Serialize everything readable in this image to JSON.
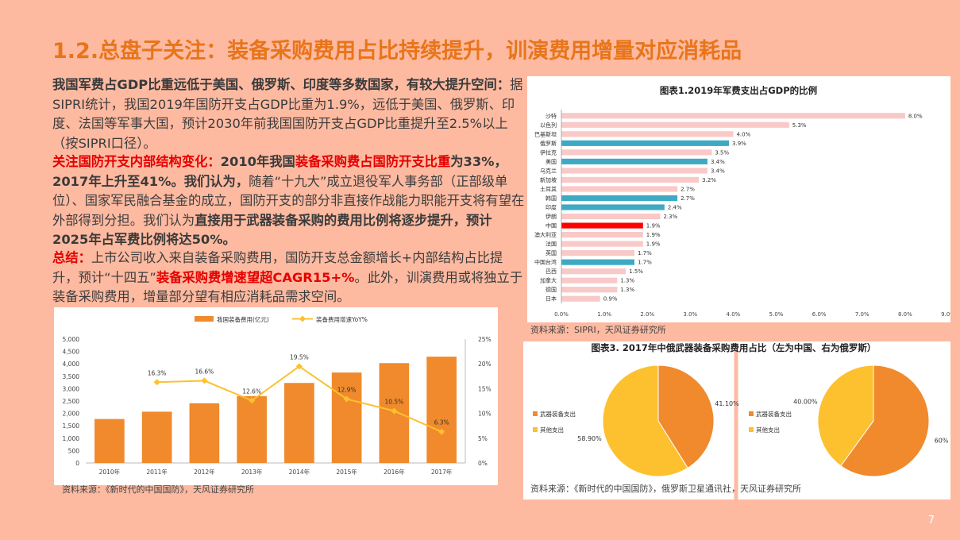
{
  "title": "1.2.总盘子关注：装备采购费用占比持续提升，训演费用增量对应消耗品",
  "page_number": "7",
  "paragraphs": {
    "p1_bold": "我国军费占GDP比重远低于美国、俄罗斯、印度等多数国家，有较大提升空间：",
    "p1_text": "据SIPRI统计，我国2019年国防开支占GDP比重为1.9%，远低于美国、俄罗斯、印度、法国等军事大国，预计2030年前我国国防开支占GDP比重提升至2.5%以上（按SIPRI口径）。",
    "p2_red1": "关注国防开支内部结构变化：",
    "p2_bold1": "2010年我国",
    "p2_red2": "装备采购费占国防开支比重",
    "p2_bold2": "为33%，2017年上升至41%。我们认为，",
    "p2_text1": "随着“十九大”成立退役军人事务部（正部级单位）、国家军民融合基金的成立，国防开支的部分非直接作战能力职能开支将有望在外部得到分担。我们认为",
    "p2_bold3": "直接用于武器装备采购的费用比例将逐步提升，预计2025年占军费比例将达50%。",
    "p3_red1": "总结：",
    "p3_text1": "上市公司收入来自装备采购费用，国防开支总金额增长+内部结构占比提升，预计“十四五”",
    "p3_red2": "装备采购费增速望超CAGR15+%",
    "p3_text2": "。此外，训演费用或将独立于装备采购费用，增量部分望有相应消耗品需求空间。"
  },
  "sources": {
    "left_chart": "资料来源：《新时代的中国国防》，天风证券研究所",
    "right_chart": "资料来源：SIPRI，天风证券研究所",
    "pies": "资料来源：《新时代的中国国防》，俄罗斯卫星通讯社，天风证券研究所"
  },
  "colors": {
    "background": "#FDBAA1",
    "title": "#E8751A",
    "bar_orange": "#F08A2C",
    "line_yellow": "#FDC02F",
    "hbar_pink": "#F9C9C8",
    "hbar_teal": "#3FA9C4",
    "hbar_red": "#FF0000",
    "pie_orange": "#F08A2C",
    "pie_yellow": "#FDC02F"
  },
  "chart_data": [
    {
      "type": "bar",
      "categories": [
        "2010年",
        "2011年",
        "2012年",
        "2013年",
        "2014年",
        "2015年",
        "2016年",
        "2017年"
      ],
      "series": [
        {
          "name": "我国装备费用(亿元)",
          "values": [
            1774,
            2070,
            2410,
            2700,
            3230,
            3650,
            4030,
            4290
          ],
          "axis": "left"
        },
        {
          "name": "装备费用增速YoY%",
          "type": "line",
          "values": [
            null,
            16.3,
            16.6,
            12.6,
            19.5,
            12.9,
            10.5,
            6.3
          ],
          "labels": [
            "",
            "16.3%",
            "16.6%",
            "12.6%",
            "19.5%",
            "12.9%",
            "10.5%",
            "6.3%"
          ],
          "axis": "right"
        }
      ],
      "yticks": [
        "5,000",
        "4,500",
        "4,000",
        "3,500",
        "3,000",
        "2,500",
        "2,000",
        "1,500",
        "1,000",
        "500",
        "0"
      ],
      "y2ticks": [
        "25%",
        "20%",
        "15%",
        "10%",
        "5%",
        "0%"
      ],
      "ylim": [
        0,
        5000
      ],
      "y2lim": [
        0,
        25
      ],
      "legend_position": "top-center"
    },
    {
      "type": "bar",
      "orientation": "horizontal",
      "title": "图表1.2019年军费支出占GDP的比例",
      "categories": [
        "沙特",
        "以色列",
        "巴基斯坦",
        "俄罗斯",
        "伊拉克",
        "美国",
        "乌克兰",
        "新加坡",
        "土耳其",
        "韩国",
        "印度",
        "伊朗",
        "中国",
        "澳大利亚",
        "法国",
        "英国",
        "中国台湾",
        "巴西",
        "加拿大",
        "德国",
        "日本"
      ],
      "values": [
        8.0,
        5.3,
        4.0,
        3.9,
        3.5,
        3.4,
        3.4,
        3.2,
        2.7,
        2.7,
        2.4,
        2.3,
        1.9,
        1.9,
        1.9,
        1.7,
        1.7,
        1.5,
        1.3,
        1.3,
        0.9
      ],
      "value_labels": [
        "8.0%",
        "5.3%",
        "4.0%",
        "3.9%",
        "3.5%",
        "3.4%",
        "3.4%",
        "3.2%",
        "2.7%",
        "2.7%",
        "2.4%",
        "2.3%",
        "1.9%",
        "1.9%",
        "1.9%",
        "1.7%",
        "1.7%",
        "1.5%",
        "1.3%",
        "1.3%",
        "0.9%"
      ],
      "colors": [
        "pink",
        "pink",
        "pink",
        "teal",
        "pink",
        "teal",
        "pink",
        "pink",
        "pink",
        "teal",
        "teal",
        "pink",
        "red",
        "pink",
        "pink",
        "pink",
        "teal",
        "pink",
        "pink",
        "pink",
        "pink"
      ],
      "xticks": [
        "0.0%",
        "1.0%",
        "2.0%",
        "3.0%",
        "4.0%",
        "5.0%",
        "6.0%",
        "7.0%",
        "8.0%",
        "9.0%"
      ],
      "xlim": [
        0,
        9
      ]
    },
    {
      "type": "pie",
      "title": "图表3. 2017年中俄武器装备采购费用占比（左为中国、右为俄罗斯）",
      "legend": [
        "武器装备支出",
        "其他支出"
      ],
      "charts": [
        {
          "slices": [
            {
              "name": "武器装备支出",
              "value": 41.1,
              "label": "41.10%"
            },
            {
              "name": "其他支出",
              "value": 58.9,
              "label": "58.90%"
            }
          ]
        },
        {
          "slices": [
            {
              "name": "武器装备支出",
              "value": 60,
              "label": "60%"
            },
            {
              "name": "其他支出",
              "value": 40,
              "label": "40.00%"
            }
          ]
        }
      ]
    }
  ]
}
